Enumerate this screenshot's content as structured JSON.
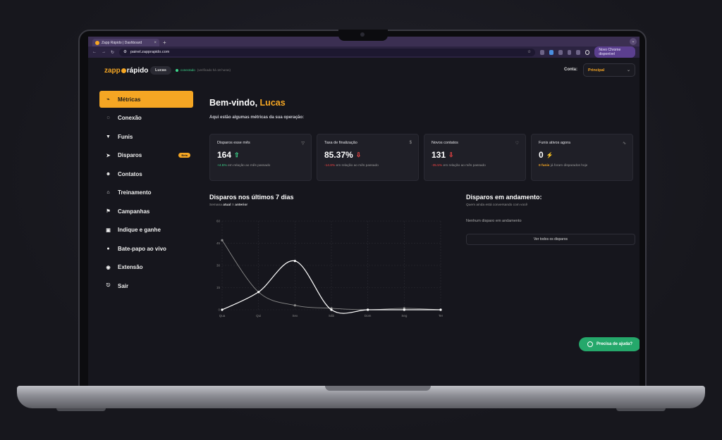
{
  "browser": {
    "tab_title": "Zapp Rápido | Dashboard",
    "tab_close": "×",
    "new_tab": "+",
    "tab_menu": "⌄",
    "back": "←",
    "forward": "→",
    "reload": "↻",
    "url": "painel.zapprapido.com",
    "bookmark": "☆",
    "new_chrome_label": "Novo Chrome disponível"
  },
  "header": {
    "logo_part1": "zapp",
    "logo_part2": "rápido",
    "user_pill": "Lucas",
    "status": "conectado",
    "status_detail": "(verificado há 18 horas)",
    "account_label": "Conta:",
    "account_value": "Principal",
    "account_chevron": "⌄"
  },
  "sidebar": {
    "items": [
      {
        "label": "Métricas",
        "icon": "chart-icon",
        "glyph": "⌁"
      },
      {
        "label": "Conexão",
        "icon": "whatsapp-icon",
        "glyph": "◌"
      },
      {
        "label": "Funis",
        "icon": "funnel-icon",
        "glyph": "▼"
      },
      {
        "label": "Disparos",
        "icon": "rocket-icon",
        "glyph": "➤",
        "badge": "Beta"
      },
      {
        "label": "Contatos",
        "icon": "users-icon",
        "glyph": "☻"
      },
      {
        "label": "Treinamento",
        "icon": "institution-icon",
        "glyph": "⌂"
      },
      {
        "label": "Campanhas",
        "icon": "flag-icon",
        "glyph": "⚑"
      },
      {
        "label": "Indique e ganhe",
        "icon": "gift-icon",
        "glyph": "▣"
      },
      {
        "label": "Bate-papo ao vivo",
        "icon": "chat-icon",
        "glyph": "●"
      },
      {
        "label": "Extensão",
        "icon": "chrome-icon",
        "glyph": "◉"
      },
      {
        "label": "Sair",
        "icon": "logout-icon",
        "glyph": "⎋"
      }
    ]
  },
  "main": {
    "welcome_prefix": "Bem-vindo, ",
    "welcome_name": "Lucas",
    "subtitle": "Aqui estão algumas métricas da sua operação:",
    "cards": [
      {
        "title": "Disparos esse mês",
        "icon": "funnel-icon",
        "glyph": "▽",
        "value": "164",
        "trend": "up",
        "trend_glyph": "⇧",
        "delta": "+4.5%",
        "delta_text": " em relação ao mês passado"
      },
      {
        "title": "Taxa de finalização",
        "icon": "dollar-icon",
        "glyph": "$",
        "value": "85.37%",
        "trend": "down",
        "trend_glyph": "⇩",
        "delta": "-14.8%",
        "delta_text": " em relação ao mês passado"
      },
      {
        "title": "Novos contatos",
        "icon": "heartbeat-icon",
        "glyph": "♡",
        "value": "131",
        "trend": "down",
        "trend_glyph": "⇩",
        "delta": "-35.5%",
        "delta_text": " em relação ao mês passado"
      },
      {
        "title": "Funis ativos agora",
        "icon": "pulse-icon",
        "glyph": "∿",
        "value": "0",
        "trend": "bolt",
        "trend_glyph": "⚡",
        "delta": "0 funis",
        "delta_text": " já foram disparados hoje"
      }
    ],
    "chart_title": "Disparos nos últimos 7 dias",
    "chart_sub_prefix": "Semana ",
    "chart_sub_current": "atual",
    "chart_sub_mid": " X ",
    "chart_sub_previous": "anterior",
    "active_title": "Disparos em andamento:",
    "active_sub": "Quem ainda está conversando com você",
    "active_empty": "Nenhum disparo em andamento",
    "active_button": "Ver todos os disparos",
    "help_button": "Precisa de ajuda?"
  },
  "chart_data": {
    "type": "line",
    "categories": [
      "Qua",
      "Qui",
      "Sex",
      "Sáb",
      "Dom",
      "Seg",
      "Ter"
    ],
    "ylim": [
      0,
      60
    ],
    "yticks": [
      0,
      15,
      30,
      45,
      60
    ],
    "grid": true,
    "series": [
      {
        "values": [
          0,
          12,
          33,
          0,
          0,
          0,
          0
        ],
        "color": "#ffffff"
      },
      {
        "values": [
          47,
          12,
          3,
          1,
          0,
          1,
          0
        ],
        "color": "#8a8a8a"
      }
    ]
  }
}
